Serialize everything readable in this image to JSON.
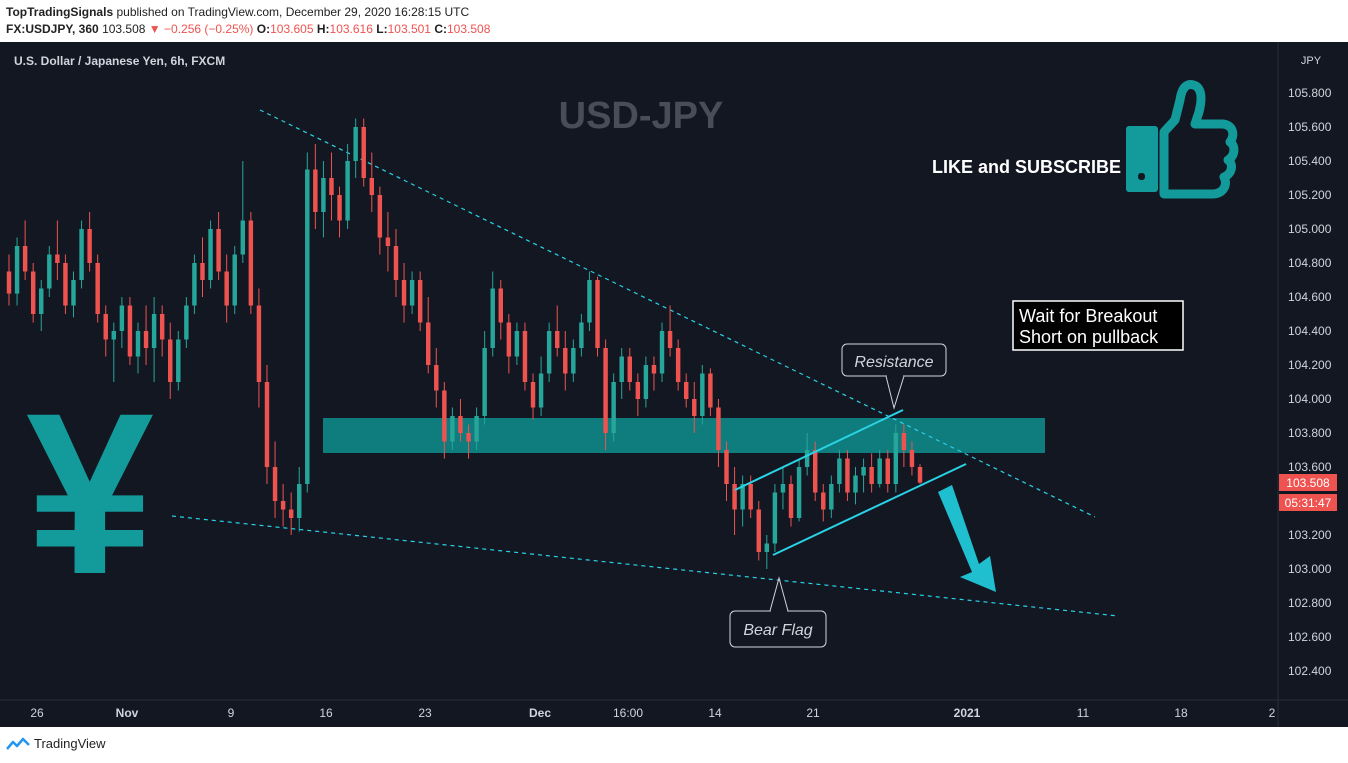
{
  "header": {
    "publisher": "TopTradingSignals",
    "published_on": "published on TradingView.com, December 29, 2020 16:28:15 UTC",
    "symbol_line": {
      "symbol": "FX:USDJPY, 360",
      "last": "103.508",
      "change": "−0.256 (−0.25%)",
      "o_label": "O:",
      "o_value": "103.605",
      "h_label": "H:",
      "h_value": "103.616",
      "l_label": "L:",
      "l_value": "103.501",
      "c_label": "C:",
      "c_value": "103.508"
    }
  },
  "footer": {
    "brand": "TradingView"
  },
  "chart_data": {
    "type": "candlestick",
    "title": "U.S. Dollar / Japanese Yen, 6h, FXCM",
    "watermark": "USD-JPY",
    "currency_label": "JPY",
    "ylim": [
      102.3,
      106.05
    ],
    "y_ticks": [
      "105.800",
      "105.600",
      "105.400",
      "105.200",
      "105.000",
      "104.800",
      "104.600",
      "104.400",
      "104.200",
      "104.000",
      "103.800",
      "103.600",
      "103.200",
      "103.000",
      "102.800",
      "102.600",
      "102.400"
    ],
    "x_ticks": [
      "26",
      "Nov",
      "9",
      "16",
      "23",
      "Dec",
      "16:00",
      "14",
      "21",
      "2021",
      "11",
      "18",
      "2"
    ],
    "last_price_tag": "103.508",
    "countdown_tag": "05:31:47",
    "colors": {
      "up": "#26a69a",
      "down": "#ef5350",
      "accent": "#29d3e6",
      "zone": "#0f8585",
      "icon": "#139a9a"
    },
    "candles": [
      [
        104.75,
        104.85,
        104.55,
        104.62
      ],
      [
        104.62,
        104.95,
        104.55,
        104.9
      ],
      [
        104.9,
        105.05,
        104.7,
        104.75
      ],
      [
        104.75,
        104.8,
        104.45,
        104.5
      ],
      [
        104.5,
        104.7,
        104.4,
        104.65
      ],
      [
        104.65,
        104.9,
        104.6,
        104.85
      ],
      [
        104.85,
        105.05,
        104.7,
        104.8
      ],
      [
        104.8,
        104.85,
        104.5,
        104.55
      ],
      [
        104.55,
        104.75,
        104.48,
        104.7
      ],
      [
        104.7,
        105.05,
        104.65,
        105.0
      ],
      [
        105.0,
        105.1,
        104.75,
        104.8
      ],
      [
        104.8,
        104.85,
        104.45,
        104.5
      ],
      [
        104.5,
        104.55,
        104.25,
        104.35
      ],
      [
        104.35,
        104.45,
        104.1,
        104.4
      ],
      [
        104.4,
        104.6,
        104.3,
        104.55
      ],
      [
        104.55,
        104.6,
        104.2,
        104.25
      ],
      [
        104.25,
        104.45,
        104.15,
        104.4
      ],
      [
        104.4,
        104.55,
        104.2,
        104.3
      ],
      [
        104.3,
        104.6,
        104.1,
        104.5
      ],
      [
        104.5,
        104.55,
        104.25,
        104.35
      ],
      [
        104.35,
        104.45,
        104.0,
        104.1
      ],
      [
        104.1,
        104.4,
        104.05,
        104.35
      ],
      [
        104.35,
        104.6,
        104.3,
        104.55
      ],
      [
        104.55,
        104.85,
        104.5,
        104.8
      ],
      [
        104.8,
        104.95,
        104.6,
        104.7
      ],
      [
        104.7,
        105.05,
        104.65,
        105.0
      ],
      [
        105.0,
        105.1,
        104.7,
        104.75
      ],
      [
        104.75,
        104.85,
        104.45,
        104.55
      ],
      [
        104.55,
        104.9,
        104.5,
        104.85
      ],
      [
        104.85,
        105.4,
        104.8,
        105.05
      ],
      [
        105.05,
        105.1,
        104.5,
        104.55
      ],
      [
        104.55,
        104.65,
        103.95,
        104.1
      ],
      [
        104.1,
        104.2,
        103.5,
        103.6
      ],
      [
        103.6,
        103.75,
        103.3,
        103.4
      ],
      [
        103.4,
        103.5,
        103.25,
        103.35
      ],
      [
        103.35,
        103.45,
        103.2,
        103.3
      ],
      [
        103.3,
        103.6,
        103.22,
        103.5
      ],
      [
        103.5,
        105.45,
        103.45,
        105.35
      ],
      [
        105.35,
        105.5,
        105.0,
        105.1
      ],
      [
        105.1,
        105.4,
        104.95,
        105.3
      ],
      [
        105.3,
        105.45,
        105.05,
        105.2
      ],
      [
        105.2,
        105.25,
        104.95,
        105.05
      ],
      [
        105.05,
        105.5,
        105.0,
        105.4
      ],
      [
        105.4,
        105.65,
        105.3,
        105.6
      ],
      [
        105.6,
        105.65,
        105.25,
        105.3
      ],
      [
        105.3,
        105.45,
        105.1,
        105.2
      ],
      [
        105.2,
        105.25,
        104.85,
        104.95
      ],
      [
        104.95,
        105.1,
        104.75,
        104.9
      ],
      [
        104.9,
        105.0,
        104.6,
        104.7
      ],
      [
        104.7,
        104.8,
        104.45,
        104.55
      ],
      [
        104.55,
        104.75,
        104.5,
        104.7
      ],
      [
        104.7,
        104.75,
        104.4,
        104.45
      ],
      [
        104.45,
        104.6,
        104.15,
        104.2
      ],
      [
        104.2,
        104.3,
        103.95,
        104.05
      ],
      [
        104.05,
        104.1,
        103.65,
        103.75
      ],
      [
        103.75,
        103.95,
        103.7,
        103.9
      ],
      [
        103.9,
        104.0,
        103.75,
        103.8
      ],
      [
        103.8,
        103.85,
        103.65,
        103.75
      ],
      [
        103.75,
        103.95,
        103.7,
        103.9
      ],
      [
        103.9,
        104.4,
        103.85,
        104.3
      ],
      [
        104.3,
        104.75,
        104.25,
        104.65
      ],
      [
        104.65,
        104.7,
        104.35,
        104.45
      ],
      [
        104.45,
        104.5,
        104.15,
        104.25
      ],
      [
        104.25,
        104.45,
        104.2,
        104.4
      ],
      [
        104.4,
        104.45,
        104.05,
        104.1
      ],
      [
        104.1,
        104.15,
        103.88,
        103.95
      ],
      [
        103.95,
        104.25,
        103.9,
        104.15
      ],
      [
        104.15,
        104.45,
        104.1,
        104.4
      ],
      [
        104.4,
        104.55,
        104.25,
        104.3
      ],
      [
        104.3,
        104.4,
        104.05,
        104.15
      ],
      [
        104.15,
        104.35,
        104.1,
        104.3
      ],
      [
        104.3,
        104.5,
        104.25,
        104.45
      ],
      [
        104.45,
        104.75,
        104.4,
        104.7
      ],
      [
        104.7,
        104.72,
        104.25,
        104.3
      ],
      [
        104.3,
        104.35,
        103.7,
        103.8
      ],
      [
        103.8,
        104.15,
        103.75,
        104.1
      ],
      [
        104.1,
        104.3,
        104.0,
        104.25
      ],
      [
        104.25,
        104.3,
        104.05,
        104.1
      ],
      [
        104.1,
        104.15,
        103.9,
        104.0
      ],
      [
        104.0,
        104.25,
        103.95,
        104.2
      ],
      [
        104.2,
        104.25,
        104.05,
        104.15
      ],
      [
        104.15,
        104.45,
        104.1,
        104.4
      ],
      [
        104.4,
        104.55,
        104.25,
        104.3
      ],
      [
        104.3,
        104.35,
        104.05,
        104.1
      ],
      [
        104.1,
        104.15,
        103.95,
        104.0
      ],
      [
        104.0,
        104.1,
        103.8,
        103.9
      ],
      [
        103.9,
        104.2,
        103.85,
        104.15
      ],
      [
        104.15,
        104.18,
        103.9,
        103.95
      ],
      [
        103.95,
        104.0,
        103.6,
        103.7
      ],
      [
        103.7,
        103.75,
        103.4,
        103.5
      ],
      [
        103.5,
        103.6,
        103.2,
        103.35
      ],
      [
        103.35,
        103.55,
        103.25,
        103.5
      ],
      [
        103.5,
        103.55,
        103.3,
        103.35
      ],
      [
        103.35,
        103.4,
        103.05,
        103.1
      ],
      [
        103.1,
        103.2,
        103.0,
        103.15
      ],
      [
        103.15,
        103.5,
        103.1,
        103.45
      ],
      [
        103.45,
        103.6,
        103.35,
        103.5
      ],
      [
        103.5,
        103.55,
        103.25,
        103.3
      ],
      [
        103.3,
        103.65,
        103.28,
        103.6
      ],
      [
        103.6,
        103.8,
        103.55,
        103.7
      ],
      [
        103.7,
        103.75,
        103.4,
        103.45
      ],
      [
        103.45,
        103.5,
        103.28,
        103.35
      ],
      [
        103.35,
        103.55,
        103.3,
        103.5
      ],
      [
        103.5,
        103.7,
        103.45,
        103.65
      ],
      [
        103.65,
        103.7,
        103.4,
        103.45
      ],
      [
        103.45,
        103.6,
        103.38,
        103.55
      ],
      [
        103.55,
        103.65,
        103.45,
        103.6
      ],
      [
        103.6,
        103.68,
        103.45,
        103.5
      ],
      [
        103.5,
        103.7,
        103.48,
        103.65
      ],
      [
        103.65,
        103.7,
        103.45,
        103.5
      ],
      [
        103.5,
        103.85,
        103.45,
        103.8
      ],
      [
        103.8,
        103.85,
        103.6,
        103.7
      ],
      [
        103.7,
        103.75,
        103.55,
        103.6
      ],
      [
        103.6,
        103.616,
        103.501,
        103.508
      ]
    ]
  },
  "annotations": {
    "resistance_label": "Resistance",
    "bear_flag_label": "Bear Flag",
    "signal_line1": "Wait for Breakout",
    "signal_line2": "Short on pullback",
    "cta": "LIKE and SUBSCRIBE",
    "yen_symbol": "¥"
  },
  "icons": [
    "thumbs-up-icon",
    "tradingview-logo-icon",
    "down-arrow-icon"
  ]
}
